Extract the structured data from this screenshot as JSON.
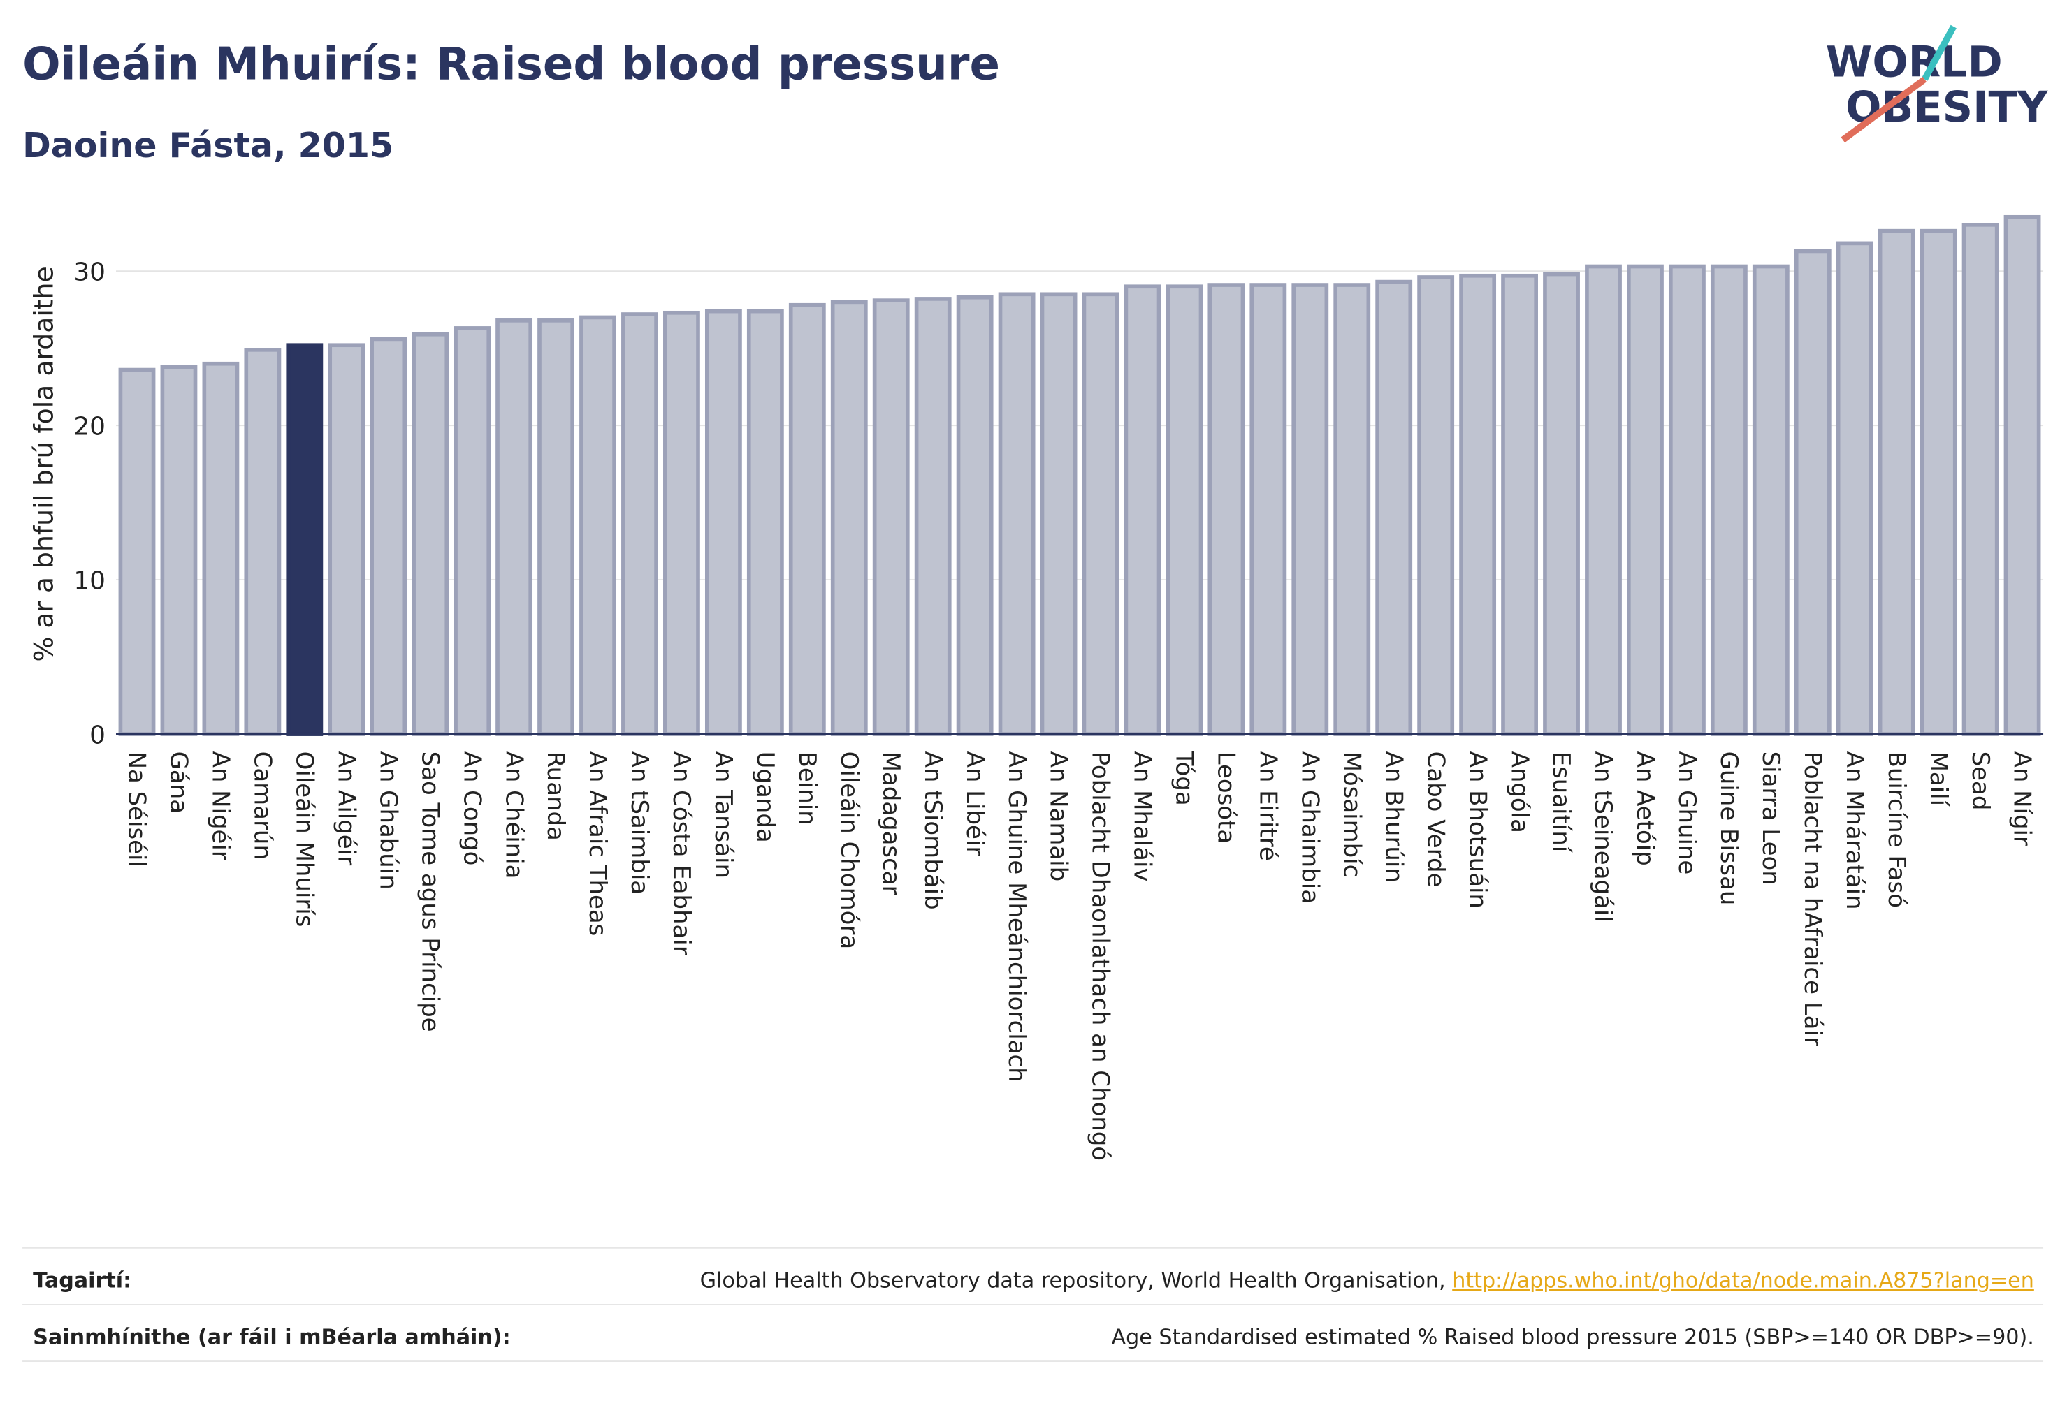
{
  "chart_data": {
    "type": "bar",
    "title": "Oileáin Mhuirís: Raised blood pressure",
    "subtitle": "Daoine Fásta, 2015",
    "y_label": "% ar a bhfuil brú fola ardaithe",
    "logo": [
      "WORLD",
      "OBESITY"
    ],
    "categories": [
      "Na Séiséil",
      "Gána",
      "An Nigéir",
      "Camarún",
      "Oileáin Mhuirís",
      "An Ailgéir",
      "An Ghabúin",
      "Sao Tome agus Príncipe",
      "An Congó",
      "An Chéinia",
      "Ruanda",
      "An Afraic Theas",
      "An tSaimbia",
      "An Cósta Eabhair",
      "An Tansáin",
      "Uganda",
      "Beinin",
      "Oileáin Chomóra",
      "Madagascar",
      "An tSiombáib",
      "An Libéir",
      "An Ghuine Mheánchiorclach",
      "An Namaib",
      "Poblacht Dhaonlathach an Chongó",
      "An Mhaláiv",
      "Tóga",
      "Leosóta",
      "An Eiritré",
      "An Ghaimbia",
      "Mósaimbíc",
      "An Bhurúin",
      "Cabo Verde",
      "An Bhotsuáin",
      "Angóla",
      "Esuaitíní",
      "An tSeineagáil",
      "An Aetóip",
      "An Ghuine",
      "Guine Bissau",
      "Siarra Leon",
      "Poblacht na hAfraice Láir",
      "An Mháratáin",
      "Buircíne Fasó",
      "Mailí",
      "Sead",
      "An Nígir"
    ],
    "values": [
      23.6,
      23.8,
      24.0,
      24.9,
      25.2,
      25.2,
      25.6,
      25.9,
      26.3,
      26.8,
      26.8,
      27.0,
      27.2,
      27.3,
      27.4,
      27.4,
      27.8,
      28.0,
      28.1,
      28.2,
      28.3,
      28.5,
      28.5,
      28.5,
      29.0,
      29.0,
      29.1,
      29.1,
      29.1,
      29.1,
      29.3,
      29.6,
      29.7,
      29.7,
      29.8,
      30.3,
      30.3,
      30.3,
      30.3,
      30.3,
      31.3,
      31.8,
      32.6,
      32.6,
      33.0,
      33.5
    ],
    "color": "#bfc3d0",
    "highlight_color": "#2b3560",
    "highlight": "Oileáin Mhuirís",
    "ylim": [
      0,
      35
    ],
    "yticks": [
      0,
      10,
      20,
      30
    ],
    "grid": true
  },
  "footer": {
    "rows": [
      {
        "label": "Tagairtí:",
        "text": "Global Health Observatory data repository, World Health Organisation, ",
        "link": "http://apps.who.int/gho/data/node.main.A875?lang=en"
      },
      {
        "label": "Sainmhínithe (ar fáil i mBéarla amháin):",
        "text": "Age Standardised estimated % Raised blood pressure 2015 (SBP>=140 OR DBP>=90)."
      }
    ]
  }
}
